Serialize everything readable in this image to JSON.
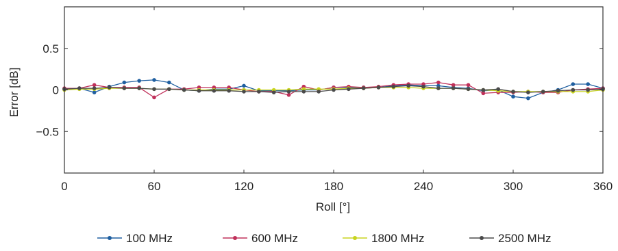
{
  "chart_data": {
    "type": "line",
    "xlabel": "Roll [°]",
    "ylabel": "Error [dB]",
    "xlim": [
      0,
      360
    ],
    "ylim": [
      -1,
      1
    ],
    "x_ticks": [
      "0",
      "60",
      "120",
      "180",
      "240",
      "300",
      "360"
    ],
    "x_tick_values": [
      0,
      60,
      120,
      180,
      240,
      300,
      360
    ],
    "y_ticks": [
      "0.5",
      "0",
      "−0.5"
    ],
    "y_tick_values": [
      0.5,
      0,
      -0.5
    ],
    "grid": false,
    "legend_position": "bottom",
    "x": [
      0,
      10,
      20,
      30,
      40,
      50,
      60,
      70,
      80,
      90,
      100,
      110,
      120,
      130,
      140,
      150,
      160,
      170,
      180,
      190,
      200,
      210,
      220,
      230,
      240,
      250,
      260,
      270,
      280,
      290,
      300,
      310,
      320,
      330,
      340,
      350,
      360
    ],
    "series": [
      {
        "name": "100 MHz",
        "color": "#1f5fa0",
        "values": [
          0.01,
          0.02,
          -0.03,
          0.04,
          0.09,
          0.11,
          0.12,
          0.09,
          0.0,
          -0.01,
          0.01,
          0.01,
          0.05,
          -0.01,
          -0.01,
          -0.01,
          0.0,
          0.0,
          0.03,
          0.03,
          0.03,
          0.03,
          0.05,
          0.06,
          0.05,
          0.05,
          0.03,
          0.02,
          -0.01,
          0.0,
          -0.08,
          -0.1,
          -0.03,
          0.0,
          0.07,
          0.07,
          0.02
        ]
      },
      {
        "name": "600 MHz",
        "color": "#c0305a",
        "values": [
          0.02,
          0.02,
          0.06,
          0.03,
          0.03,
          0.03,
          -0.09,
          0.01,
          0.01,
          0.03,
          0.03,
          0.03,
          0.0,
          -0.02,
          -0.02,
          -0.06,
          0.04,
          0.0,
          0.03,
          0.04,
          0.03,
          0.04,
          0.06,
          0.07,
          0.07,
          0.09,
          0.06,
          0.06,
          -0.04,
          -0.03,
          -0.03,
          -0.02,
          -0.03,
          -0.03,
          0.0,
          0.01,
          0.02
        ]
      },
      {
        "name": "1800 MHz",
        "color": "#c8d41e",
        "values": [
          0.0,
          0.01,
          0.01,
          0.02,
          0.02,
          0.02,
          0.01,
          0.01,
          0.0,
          0.0,
          0.0,
          0.0,
          0.0,
          0.0,
          0.0,
          0.0,
          0.01,
          0.01,
          0.01,
          0.02,
          0.02,
          0.03,
          0.03,
          0.03,
          0.02,
          0.02,
          0.02,
          0.01,
          0.0,
          -0.01,
          -0.02,
          -0.02,
          -0.02,
          -0.02,
          -0.02,
          -0.02,
          0.0
        ]
      },
      {
        "name": "2500 MHz",
        "color": "#4a4a4a",
        "values": [
          0.01,
          0.02,
          0.02,
          0.03,
          0.02,
          0.02,
          0.01,
          0.01,
          0.0,
          -0.01,
          -0.01,
          -0.01,
          -0.02,
          -0.02,
          -0.03,
          -0.02,
          -0.02,
          -0.02,
          0.0,
          0.01,
          0.02,
          0.03,
          0.04,
          0.05,
          0.04,
          0.02,
          0.02,
          0.01,
          0.0,
          0.01,
          -0.02,
          -0.03,
          -0.02,
          -0.01,
          0.0,
          0.0,
          0.01
        ]
      }
    ]
  }
}
